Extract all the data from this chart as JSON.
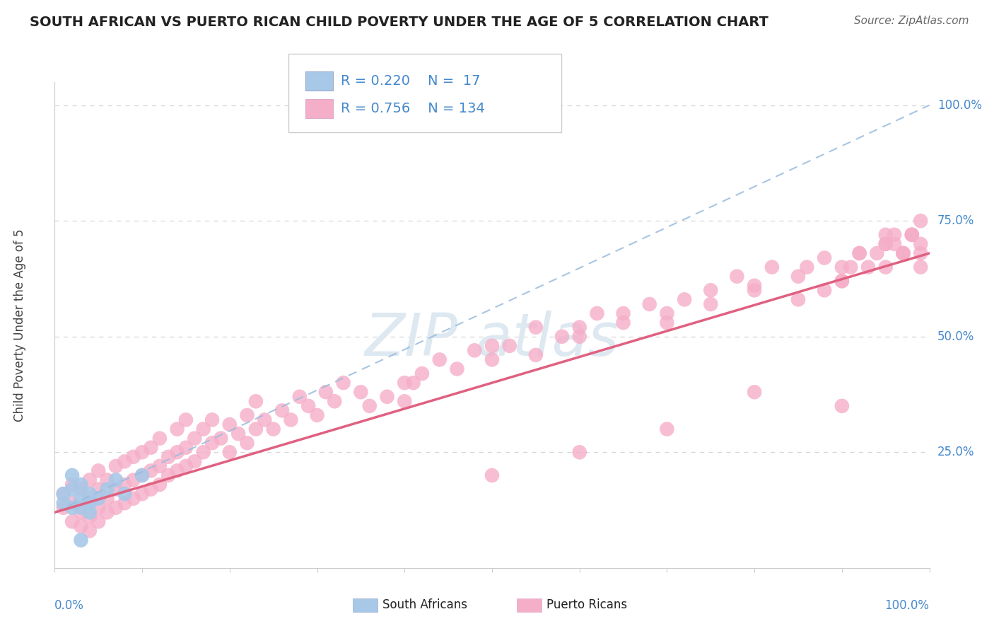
{
  "title": "SOUTH AFRICAN VS PUERTO RICAN CHILD POVERTY UNDER THE AGE OF 5 CORRELATION CHART",
  "source": "Source: ZipAtlas.com",
  "ylabel": "Child Poverty Under the Age of 5",
  "r_sa": 0.22,
  "n_sa": 17,
  "r_pr": 0.756,
  "n_pr": 134,
  "sa_color": "#a8c8e8",
  "pr_color": "#f5aec8",
  "sa_line_color": "#99bbdd",
  "pr_line_color": "#e06080",
  "background_color": "#ffffff",
  "grid_color": "#cccccc",
  "title_color": "#222222",
  "source_color": "#666666",
  "label_color": "#4488cc",
  "legend_text_color": "#222222",
  "watermark_color": "#dde8f0",
  "xlim": [
    0.0,
    1.0
  ],
  "ylim": [
    0.0,
    1.0
  ],
  "ytick_values": [
    0.25,
    0.5,
    0.75,
    1.0
  ],
  "ytick_labels": [
    "25.0%",
    "50.0%",
    "75.0%",
    "100.0%"
  ],
  "sa_x": [
    0.01,
    0.01,
    0.02,
    0.02,
    0.02,
    0.03,
    0.03,
    0.03,
    0.04,
    0.04,
    0.04,
    0.05,
    0.06,
    0.07,
    0.08,
    0.1,
    0.03
  ],
  "sa_y": [
    0.14,
    0.16,
    0.13,
    0.17,
    0.2,
    0.13,
    0.15,
    0.18,
    0.12,
    0.14,
    0.16,
    0.15,
    0.17,
    0.19,
    0.16,
    0.2,
    0.06
  ],
  "pr_x": [
    0.01,
    0.01,
    0.02,
    0.02,
    0.02,
    0.03,
    0.03,
    0.03,
    0.04,
    0.04,
    0.04,
    0.04,
    0.05,
    0.05,
    0.05,
    0.05,
    0.06,
    0.06,
    0.06,
    0.07,
    0.07,
    0.07,
    0.08,
    0.08,
    0.08,
    0.09,
    0.09,
    0.09,
    0.1,
    0.1,
    0.1,
    0.11,
    0.11,
    0.11,
    0.12,
    0.12,
    0.12,
    0.13,
    0.13,
    0.14,
    0.14,
    0.14,
    0.15,
    0.15,
    0.15,
    0.16,
    0.16,
    0.17,
    0.17,
    0.18,
    0.18,
    0.19,
    0.2,
    0.2,
    0.21,
    0.22,
    0.22,
    0.23,
    0.23,
    0.24,
    0.25,
    0.26,
    0.27,
    0.28,
    0.29,
    0.3,
    0.31,
    0.32,
    0.33,
    0.35,
    0.36,
    0.38,
    0.4,
    0.41,
    0.42,
    0.44,
    0.46,
    0.48,
    0.5,
    0.52,
    0.55,
    0.58,
    0.6,
    0.62,
    0.65,
    0.68,
    0.7,
    0.72,
    0.75,
    0.78,
    0.8,
    0.82,
    0.85,
    0.88,
    0.9,
    0.92,
    0.95,
    0.97,
    0.98,
    0.99,
    0.4,
    0.5,
    0.6,
    0.7,
    0.8,
    0.9,
    0.5,
    0.55,
    0.6,
    0.65,
    0.7,
    0.75,
    0.8,
    0.85,
    0.9,
    0.95,
    0.95,
    0.96,
    0.97,
    0.98,
    0.99,
    0.99,
    0.99,
    0.98,
    0.97,
    0.96,
    0.95,
    0.94,
    0.93,
    0.92,
    0.91,
    0.9,
    0.88,
    0.86
  ],
  "pr_y": [
    0.13,
    0.16,
    0.1,
    0.14,
    0.18,
    0.09,
    0.12,
    0.17,
    0.08,
    0.11,
    0.15,
    0.19,
    0.1,
    0.13,
    0.17,
    0.21,
    0.12,
    0.15,
    0.19,
    0.13,
    0.17,
    0.22,
    0.14,
    0.18,
    0.23,
    0.15,
    0.19,
    0.24,
    0.16,
    0.2,
    0.25,
    0.17,
    0.21,
    0.26,
    0.18,
    0.22,
    0.28,
    0.2,
    0.24,
    0.21,
    0.25,
    0.3,
    0.22,
    0.26,
    0.32,
    0.23,
    0.28,
    0.25,
    0.3,
    0.27,
    0.32,
    0.28,
    0.25,
    0.31,
    0.29,
    0.27,
    0.33,
    0.3,
    0.36,
    0.32,
    0.3,
    0.34,
    0.32,
    0.37,
    0.35,
    0.33,
    0.38,
    0.36,
    0.4,
    0.38,
    0.35,
    0.37,
    0.36,
    0.4,
    0.42,
    0.45,
    0.43,
    0.47,
    0.45,
    0.48,
    0.46,
    0.5,
    0.52,
    0.55,
    0.53,
    0.57,
    0.55,
    0.58,
    0.6,
    0.63,
    0.61,
    0.65,
    0.63,
    0.67,
    0.65,
    0.68,
    0.7,
    0.68,
    0.72,
    0.75,
    0.4,
    0.2,
    0.25,
    0.3,
    0.38,
    0.35,
    0.48,
    0.52,
    0.5,
    0.55,
    0.53,
    0.57,
    0.6,
    0.58,
    0.62,
    0.65,
    0.7,
    0.72,
    0.68,
    0.72,
    0.7,
    0.65,
    0.68,
    0.72,
    0.68,
    0.7,
    0.72,
    0.68,
    0.65,
    0.68,
    0.65,
    0.62,
    0.6,
    0.65
  ]
}
